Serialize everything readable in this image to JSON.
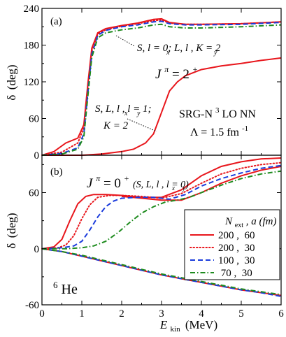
{
  "chart_data": [
    {
      "panel": "(a)",
      "type": "line",
      "xlim": [
        0,
        6
      ],
      "ylim": [
        0,
        240
      ],
      "xticks": [
        0,
        1,
        2,
        3,
        4,
        5,
        6
      ],
      "yticks": [
        0,
        60,
        120,
        180,
        240
      ],
      "ylabel_main": "δ",
      "ylabel_unit": "(deg)",
      "jpi_main": "J",
      "jpi_sup": "π",
      "jpi_rest": "= 2",
      "jpi_sup2": "+",
      "annot_upper": "S, l = 0; L, l , K = 2",
      "annot_upper_x_sub": "x",
      "annot_upper_y_sub": "y",
      "annot_lower_line1": "S, L, l , l = 1;",
      "annot_lower_x_sub": "x",
      "annot_lower_y_sub": "y",
      "annot_lower_line2": "K = 2",
      "interaction_line1_pre": "SRG-N",
      "interaction_line1_sup": "3",
      "interaction_line1_post": "LO NN",
      "interaction_line2_pre": "Λ = 1.5 fm",
      "interaction_line2_sup": "-1",
      "series": [
        {
          "name": "200, 60",
          "color": "#e8161c",
          "dash": "solid",
          "groups": [
            {
              "x": [
                0,
                0.3,
                0.6,
                0.9,
                1.05,
                1.15,
                1.25,
                1.4,
                1.6,
                2.0,
                2.4,
                2.8,
                3.0,
                3.2,
                3.6,
                4.0,
                5.0,
                6.0
              ],
              "y": [
                0,
                6,
                20,
                28,
                50,
                115,
                175,
                200,
                207,
                212,
                216,
                222,
                223,
                217,
                214,
                214,
                215,
                218
              ]
            },
            {
              "x": [
                0,
                1.0,
                1.5,
                2.0,
                2.3,
                2.6,
                2.8,
                3.0,
                3.2,
                3.4,
                3.6,
                4.0,
                4.5,
                5.0,
                5.5,
                6.0
              ],
              "y": [
                0,
                0,
                2,
                6,
                10,
                20,
                35,
                70,
                105,
                120,
                130,
                140,
                146,
                150,
                155,
                159
              ]
            }
          ]
        },
        {
          "name": "200, 30",
          "color": "#e8161c",
          "dash": "dotted",
          "groups": [
            {
              "x": [
                0,
                0.5,
                0.9,
                1.05,
                1.15,
                1.25,
                1.4,
                1.6,
                2.0,
                2.4,
                2.8,
                3.0,
                3.2,
                3.6,
                4.0,
                5.0,
                6.0
              ],
              "y": [
                0,
                5,
                20,
                45,
                110,
                170,
                198,
                205,
                211,
                215,
                220,
                221,
                216,
                214,
                214,
                215,
                218
              ]
            }
          ]
        },
        {
          "name": "100, 30",
          "color": "#1a3bdc",
          "dash": "dashed",
          "groups": [
            {
              "x": [
                0,
                0.5,
                0.9,
                1.05,
                1.15,
                1.25,
                1.4,
                1.6,
                2.0,
                2.4,
                2.8,
                3.0,
                3.2,
                3.6,
                4.0,
                5.0,
                6.0
              ],
              "y": [
                0,
                3,
                12,
                35,
                100,
                165,
                196,
                204,
                210,
                213,
                218,
                219,
                215,
                213,
                213,
                214,
                217
              ]
            }
          ]
        },
        {
          "name": "70, 30",
          "color": "#1e8b1e",
          "dash": "dashdot",
          "groups": [
            {
              "x": [
                0,
                0.5,
                0.9,
                1.05,
                1.15,
                1.25,
                1.4,
                1.6,
                2.0,
                2.4,
                2.8,
                3.0,
                3.2,
                3.6,
                4.0,
                5.0,
                6.0
              ],
              "y": [
                0,
                2,
                10,
                30,
                95,
                160,
                192,
                200,
                205,
                208,
                213,
                214,
                210,
                208,
                208,
                210,
                213
              ]
            }
          ]
        }
      ]
    },
    {
      "panel": "(b)",
      "type": "line",
      "xlim": [
        0,
        6
      ],
      "ylim": [
        -60,
        100
      ],
      "xticks": [
        0,
        1,
        2,
        3,
        4,
        5,
        6
      ],
      "yticks": [
        -60,
        0,
        60
      ],
      "xlabel_main": "E",
      "xlabel_sub": "kin",
      "xlabel_unit": "(MeV)",
      "ylabel_main": "δ",
      "ylabel_unit": "(deg)",
      "jpi_main": "J",
      "jpi_sup": "π",
      "jpi_rest": "= 0",
      "jpi_sup2": "+",
      "jpi_qn": "(S, L, l , l = 0)",
      "jpi_qn_x_sub": "x",
      "jpi_qn_y_sub": "y",
      "nucleus_sup": "6",
      "nucleus": "He",
      "legend_header_main": "N",
      "legend_header_sub": "ext",
      "legend_header_rest": ", a (fm)",
      "legend_placement": "lower-right",
      "series": [
        {
          "name": "200, 60",
          "label": "200 ,  60",
          "color": "#e8161c",
          "dash": "solid",
          "groups": [
            {
              "x": [
                0,
                0.3,
                0.5,
                0.7,
                0.9,
                1.1,
                1.3,
                1.6,
                2.0,
                2.5,
                3.0,
                3.5,
                4.0,
                4.5,
                5.0,
                5.5,
                6.0
              ],
              "y": [
                0,
                2,
                10,
                30,
                48,
                56,
                58,
                58,
                57,
                55,
                55,
                63,
                78,
                88,
                93,
                96,
                97
              ]
            },
            {
              "x": [
                0,
                0.5,
                1,
                1.5,
                2,
                2.5,
                3,
                3.5,
                4,
                4.5,
                5,
                5.5,
                6
              ],
              "y": [
                0,
                -3,
                -8,
                -13,
                -18,
                -23,
                -28,
                -32,
                -36,
                -40,
                -44,
                -47,
                -50
              ]
            },
            {
              "x": [
                2.0,
                2.5,
                3.0,
                3.5,
                4.0,
                4.5,
                5.0,
                5.5,
                6.0
              ],
              "y": [
                56,
                54,
                52,
                52,
                60,
                70,
                78,
                84,
                88
              ]
            }
          ]
        },
        {
          "name": "200, 30",
          "label": "200 ,  30",
          "color": "#e8161c",
          "dash": "dotted",
          "groups": [
            {
              "x": [
                0,
                0.4,
                0.6,
                0.8,
                1.0,
                1.2,
                1.4,
                1.7,
                2.0,
                2.5,
                3.0,
                3.5,
                4.0,
                4.5,
                5.0,
                5.5,
                6.0
              ],
              "y": [
                0,
                1,
                4,
                14,
                32,
                47,
                55,
                57,
                57,
                56,
                54,
                59,
                70,
                80,
                86,
                90,
                92
              ]
            }
          ]
        },
        {
          "name": "100, 30",
          "label": "100 ,  30",
          "color": "#1a3bdc",
          "dash": "dashed",
          "groups": [
            {
              "x": [
                0,
                0.5,
                0.8,
                1.0,
                1.2,
                1.4,
                1.6,
                1.8,
                2.0,
                2.4,
                2.8,
                3.2,
                3.6,
                4.0,
                4.5,
                5.0,
                5.5,
                6.0
              ],
              "y": [
                0,
                1,
                3,
                8,
                20,
                34,
                45,
                51,
                54,
                55,
                55,
                53,
                58,
                67,
                75,
                81,
                86,
                89
              ]
            },
            {
              "x": [
                0,
                0.5,
                1,
                1.5,
                2,
                2.5,
                3,
                3.5,
                4,
                4.5,
                5,
                5.5,
                6
              ],
              "y": [
                0,
                -3,
                -8,
                -13,
                -18,
                -23,
                -28,
                -32,
                -36,
                -40,
                -44,
                -47,
                -51
              ]
            }
          ]
        },
        {
          "name": "70, 30",
          "label": " 70 ,  30",
          "color": "#1e8b1e",
          "dash": "dashdot",
          "groups": [
            {
              "x": [
                0,
                0.6,
                1.0,
                1.3,
                1.6,
                1.9,
                2.2,
                2.5,
                2.8,
                3.1,
                3.4,
                3.7,
                4.0,
                4.5,
                5.0,
                5.5,
                6.0
              ],
              "y": [
                0,
                0,
                1,
                3,
                8,
                17,
                28,
                38,
                45,
                50,
                52,
                55,
                60,
                68,
                75,
                80,
                83
              ]
            },
            {
              "x": [
                0,
                0.5,
                1,
                1.5,
                2,
                2.5,
                3,
                3.5,
                4,
                4.5,
                5,
                5.5,
                6
              ],
              "y": [
                0,
                -3,
                -7,
                -12,
                -17,
                -22,
                -27,
                -31,
                -35,
                -39,
                -43,
                -46,
                -49
              ]
            }
          ]
        }
      ]
    }
  ]
}
